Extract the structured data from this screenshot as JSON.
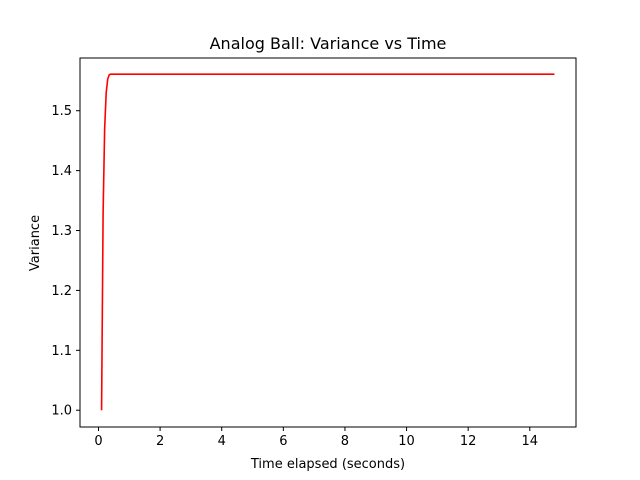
{
  "chart_data": {
    "type": "line",
    "title": "Analog Ball: Variance vs Time",
    "xlabel": "Time elapsed (seconds)",
    "ylabel": "Variance",
    "xlim": [
      -0.6,
      15.5
    ],
    "ylim": [
      0.972,
      1.588
    ],
    "xticks": [
      0,
      2,
      4,
      6,
      8,
      10,
      12,
      14
    ],
    "xtick_labels": [
      "0",
      "2",
      "4",
      "6",
      "8",
      "10",
      "12",
      "14"
    ],
    "yticks": [
      1.0,
      1.1,
      1.2,
      1.3,
      1.4,
      1.5
    ],
    "ytick_labels": [
      "1.0",
      "1.1",
      "1.2",
      "1.3",
      "1.4",
      "1.5"
    ],
    "grid": false,
    "series": [
      {
        "color": "#ff0000",
        "x": [
          0.1,
          0.15,
          0.2,
          0.25,
          0.3,
          0.35,
          0.4,
          0.5,
          1.0,
          2.0,
          4.0,
          6.0,
          8.0,
          10.0,
          12.0,
          14.0,
          14.8
        ],
        "y": [
          1.0,
          1.33,
          1.47,
          1.53,
          1.553,
          1.56,
          1.561,
          1.561,
          1.561,
          1.561,
          1.561,
          1.561,
          1.561,
          1.561,
          1.561,
          1.561,
          1.561
        ]
      }
    ]
  }
}
